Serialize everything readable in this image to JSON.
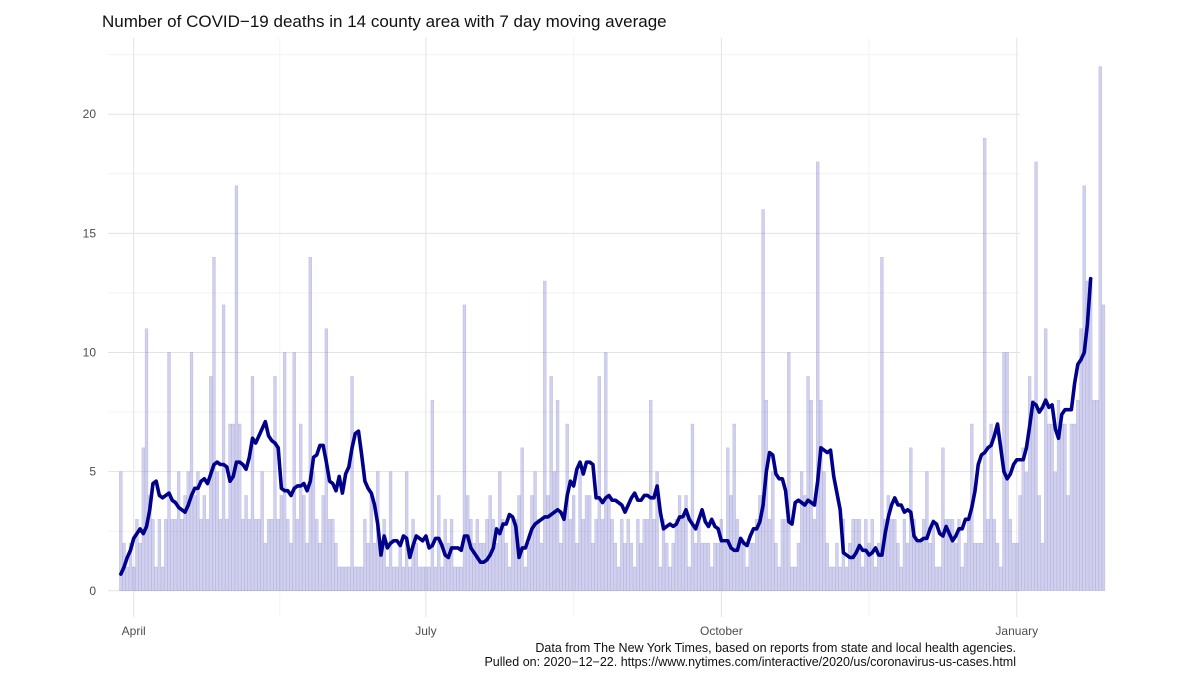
{
  "chart_data": {
    "type": "bar",
    "title": "Number of COVID−19 deaths in 14 county area with 7 day moving average",
    "xlabel": "",
    "ylabel": "",
    "start_date": "2020-03-28",
    "x_ticks": [
      {
        "date": "2020-04-01",
        "label": "April"
      },
      {
        "date": "2020-07-01",
        "label": "July"
      },
      {
        "date": "2020-10-01",
        "label": "October"
      },
      {
        "date": "2021-01-01",
        "label": "January"
      }
    ],
    "y_ticks": [
      0,
      5,
      10,
      15,
      20
    ],
    "xlim": [
      "2020-03-24",
      "2021-01-02"
    ],
    "ylim": [
      -1.1,
      23.2
    ],
    "grid": true,
    "bar_color": "#7b7bcc",
    "line_color": "#00008b",
    "series": [
      {
        "kind": "bar",
        "values": [
          5,
          2,
          1,
          2,
          1,
          3,
          2,
          6,
          11,
          4,
          3,
          1,
          3,
          1,
          3,
          10,
          3,
          3,
          5,
          3,
          4,
          5,
          10,
          4,
          5,
          3,
          4,
          3,
          9,
          14,
          5,
          3,
          12,
          3,
          7,
          7,
          17,
          7,
          3,
          4,
          3,
          9,
          3,
          3,
          5,
          2,
          3,
          3,
          9,
          3,
          4,
          10,
          3,
          2,
          10,
          3,
          7,
          4,
          2,
          14,
          5,
          3,
          2,
          4,
          11,
          3,
          3,
          2,
          1,
          1,
          1,
          1,
          9,
          1,
          1,
          1,
          3,
          2,
          4,
          2,
          5,
          2,
          3,
          1,
          5,
          1,
          1,
          2,
          1,
          5,
          1,
          3,
          2,
          1,
          1,
          1,
          1,
          8,
          1,
          4,
          1,
          3,
          2,
          3,
          1,
          1,
          1,
          12,
          4,
          3,
          2,
          3,
          2,
          2,
          3,
          4,
          3,
          2,
          5,
          3,
          2,
          1,
          3,
          3,
          4,
          6,
          1,
          2,
          4,
          5,
          3,
          2,
          13,
          4,
          9,
          5,
          8,
          2,
          3,
          7,
          3,
          4,
          2,
          5,
          3,
          4,
          4,
          2,
          3,
          9,
          3,
          10,
          4,
          3,
          2,
          1,
          3,
          2,
          3,
          2,
          1,
          3,
          2,
          3,
          3,
          8,
          3,
          5,
          1,
          3,
          2,
          1,
          2,
          3,
          4,
          3,
          4,
          1,
          7,
          2,
          3,
          2,
          2,
          2,
          1,
          2,
          2,
          3,
          2,
          6,
          4,
          7,
          3,
          2,
          2,
          1,
          2,
          2,
          3,
          4,
          16,
          8,
          3,
          5,
          2,
          1,
          3,
          3,
          10,
          1,
          1,
          2,
          5,
          4,
          9,
          8,
          3,
          18,
          8,
          5,
          2,
          1,
          1,
          2,
          1,
          3,
          1,
          2,
          3,
          3,
          3,
          1,
          3,
          2,
          3,
          1,
          2,
          14,
          3,
          4,
          3,
          3,
          2,
          1,
          3,
          2,
          6,
          3,
          2,
          2,
          3,
          5,
          2,
          3,
          1,
          1,
          6,
          3,
          3,
          3,
          2,
          3,
          1,
          2,
          3,
          7,
          2,
          2,
          2,
          19,
          3,
          7,
          3,
          2,
          1,
          10,
          10,
          3,
          2,
          2,
          4,
          6,
          5,
          9,
          8,
          18,
          4,
          2,
          11,
          7,
          7,
          5,
          8,
          7,
          7,
          4,
          7,
          7,
          8,
          11,
          17,
          13,
          13,
          8,
          8,
          22,
          12
        ]
      },
      {
        "kind": "line",
        "name": "7 day moving average",
        "values": [
          0.7,
          1.0,
          1.4,
          1.7,
          2.2,
          2.4,
          2.6,
          2.4,
          2.7,
          3.4,
          4.5,
          4.6,
          4.0,
          3.9,
          4.0,
          4.1,
          3.8,
          3.7,
          3.5,
          3.4,
          3.3,
          3.6,
          4.0,
          4.3,
          4.3,
          4.6,
          4.7,
          4.5,
          4.9,
          5.3,
          5.4,
          5.3,
          5.3,
          5.2,
          4.6,
          4.8,
          5.4,
          5.4,
          5.3,
          5.1,
          5.6,
          6.4,
          6.2,
          6.5,
          6.8,
          7.1,
          6.5,
          6.3,
          6.2,
          6.0,
          4.3,
          4.2,
          4.2,
          4.0,
          4.3,
          4.4,
          4.4,
          4.5,
          4.2,
          4.6,
          5.6,
          5.7,
          6.1,
          6.1,
          5.4,
          4.6,
          4.5,
          4.2,
          4.8,
          4.1,
          4.9,
          5.2,
          6.0,
          6.6,
          6.7,
          5.7,
          4.6,
          4.3,
          4.1,
          3.6,
          2.8,
          1.5,
          2.3,
          1.8,
          2.0,
          2.1,
          2.1,
          1.9,
          2.3,
          2.2,
          1.4,
          1.9,
          2.3,
          2.2,
          2.1,
          2.3,
          1.8,
          1.9,
          2.2,
          2.2,
          1.9,
          1.5,
          1.4,
          1.8,
          1.8,
          1.8,
          1.7,
          2.3,
          2.3,
          1.8,
          1.6,
          1.4,
          1.2,
          1.2,
          1.3,
          1.5,
          1.8,
          2.6,
          2.4,
          2.8,
          2.8,
          3.2,
          3.1,
          2.7,
          1.4,
          1.8,
          1.8,
          2.2,
          2.6,
          2.8,
          2.9,
          3.0,
          3.1,
          3.1,
          3.2,
          3.3,
          3.4,
          3.3,
          3.0,
          4.0,
          4.6,
          4.4,
          5.1,
          5.4,
          4.9,
          5.4,
          5.4,
          5.3,
          3.9,
          3.9,
          3.7,
          3.9,
          4.0,
          3.8,
          3.8,
          3.7,
          3.6,
          3.3,
          3.6,
          3.9,
          4.1,
          3.8,
          3.8,
          4.0,
          4.0,
          3.9,
          3.9,
          4.4,
          3.3,
          2.6,
          2.7,
          2.8,
          2.7,
          2.8,
          3.1,
          3.1,
          3.4,
          3.0,
          2.8,
          2.6,
          3.0,
          3.4,
          2.9,
          2.7,
          3.0,
          2.7,
          2.6,
          2.1,
          2.1,
          2.1,
          1.8,
          1.7,
          1.7,
          2.2,
          2.0,
          1.9,
          2.3,
          2.6,
          2.6,
          2.9,
          3.6,
          5.0,
          5.8,
          5.7,
          4.9,
          4.7,
          4.7,
          4.2,
          2.9,
          2.8,
          3.7,
          3.8,
          3.7,
          3.6,
          3.8,
          3.7,
          3.6,
          4.6,
          6.0,
          5.9,
          5.8,
          5.9,
          4.8,
          4.1,
          3.4,
          1.6,
          1.5,
          1.4,
          1.4,
          1.6,
          1.9,
          1.7,
          1.7,
          1.5,
          1.6,
          1.8,
          1.5,
          1.5,
          2.4,
          3.1,
          3.6,
          3.9,
          3.6,
          3.6,
          3.3,
          3.4,
          3.3,
          2.3,
          2.1,
          2.1,
          2.2,
          2.2,
          2.6,
          2.9,
          2.8,
          2.4,
          2.3,
          2.7,
          2.4,
          2.1,
          2.3,
          2.6,
          2.6,
          3.0,
          3.0,
          3.5,
          4.2,
          5.3,
          5.7,
          5.8,
          6.0,
          6.1,
          6.5,
          7.0,
          6.0,
          5.0,
          4.7,
          4.9,
          5.3,
          5.5,
          5.5,
          5.5,
          6.0,
          6.9,
          7.9,
          7.8,
          7.5,
          7.7,
          8.0,
          7.7,
          7.8,
          6.8,
          6.4,
          7.4,
          7.6,
          7.6,
          7.6,
          8.7,
          9.5,
          9.7,
          10.0,
          11.2,
          13.1
        ]
      }
    ]
  },
  "caption": {
    "line1": "Data from The New York Times, based on reports from state and local health agencies.",
    "line2": "Pulled on: 2020−12−22. https://www.nytimes.com/interactive/2020/us/coronavirus-us-cases.html"
  }
}
